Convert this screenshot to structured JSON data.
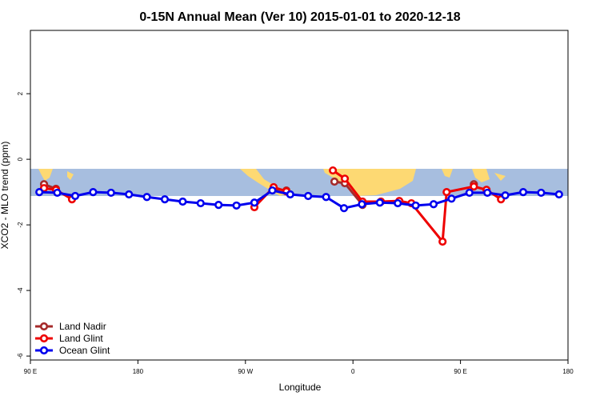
{
  "chart_data": {
    "type": "line",
    "title": "0-15N Annual Mean (Ver 10)   2015-01-01 to 2020-12-18",
    "x_label": "Longitude",
    "y_label": "XCO2 - MLO trend (ppm)",
    "xlim": [
      90,
      540
    ],
    "ylim": [
      -6.12,
      3.93
    ],
    "xticks": [
      {
        "value": 90,
        "label": "90 E"
      },
      {
        "value": 180,
        "label": "180"
      },
      {
        "value": 270,
        "label": "90 W"
      },
      {
        "value": 360,
        "label": "0"
      },
      {
        "value": 450,
        "label": "90 E"
      },
      {
        "value": 540,
        "label": "180"
      }
    ],
    "yticks": [
      2,
      0,
      -2,
      -4,
      -6
    ],
    "legend": "bottom-left",
    "series": [
      {
        "name": "Land Nadir",
        "color": "#a52a2a",
        "x": [
          101.4,
          111.4,
          null,
          293.6,
          304.3,
          null,
          344.5,
          353.2,
          368,
          null,
          461.2
        ],
        "values": [
          -0.76,
          -0.9,
          null,
          -0.9,
          -0.95,
          null,
          -0.68,
          -0.73,
          -1.39,
          null,
          -0.76
        ]
      },
      {
        "name": "Land Glint",
        "color": "#ee0000",
        "x": [
          101.4,
          111.4,
          124.8,
          null,
          277.5,
          293.6,
          304.3,
          null,
          343.2,
          353.2,
          368,
          383.4,
          398.8,
          408.9,
          435,
          438.4,
          461.2,
          471.8,
          483.9
        ],
        "values": [
          -0.88,
          -0.93,
          -1.22,
          null,
          -1.46,
          -0.85,
          -0.98,
          null,
          -0.34,
          -0.59,
          -1.29,
          -1.29,
          -1.27,
          -1.34,
          -2.51,
          -1.0,
          -0.83,
          -0.93,
          -1.22
        ]
      },
      {
        "name": "Ocean Glint",
        "color": "#0000ee",
        "x": [
          97.5,
          112.5,
          127.5,
          142.5,
          157.5,
          172.5,
          187.5,
          202.5,
          217.5,
          232.5,
          247.5,
          262.5,
          277.5,
          292.5,
          307.5,
          322.5,
          337.5,
          352.5,
          367.5,
          382.5,
          397.5,
          412.5,
          427.5,
          442.5,
          457.5,
          472.5,
          487.5,
          502.5,
          517.5,
          532.5
        ],
        "values": [
          -1.0,
          -1.02,
          -1.12,
          -1.0,
          -1.02,
          -1.07,
          -1.15,
          -1.22,
          -1.29,
          -1.34,
          -1.39,
          -1.41,
          -1.32,
          -0.95,
          -1.07,
          -1.12,
          -1.15,
          -1.49,
          -1.37,
          -1.32,
          -1.34,
          -1.41,
          -1.37,
          -1.2,
          -1.02,
          -1.02,
          -1.1,
          -1.0,
          -1.02,
          -1.07
        ]
      }
    ]
  }
}
